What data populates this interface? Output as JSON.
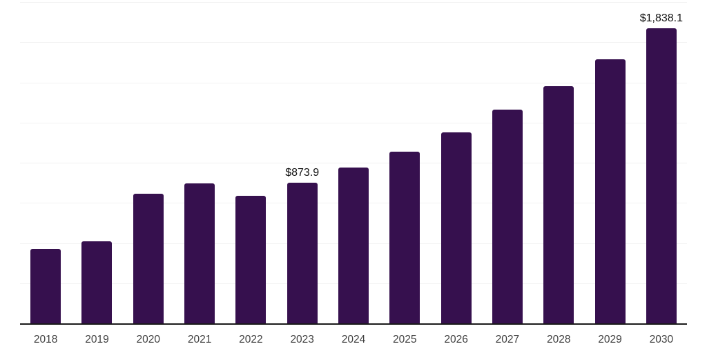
{
  "chart_data": {
    "type": "bar",
    "title": "",
    "xlabel": "",
    "ylabel": "",
    "categories": [
      "2018",
      "2019",
      "2020",
      "2021",
      "2022",
      "2023",
      "2024",
      "2025",
      "2026",
      "2027",
      "2028",
      "2029",
      "2030"
    ],
    "values": [
      465,
      510,
      805,
      870,
      795,
      873.9,
      970,
      1070,
      1190,
      1330,
      1475,
      1645,
      1838.1
    ],
    "value_labels": [
      null,
      null,
      null,
      null,
      null,
      "$873.9",
      null,
      null,
      null,
      null,
      null,
      null,
      "$1,838.1"
    ],
    "ylim": [
      0,
      2000
    ],
    "grid_interval": 250,
    "grid": true,
    "legend": false,
    "colors": {
      "bar": "#36104E",
      "axis_line": "#1a1a1a",
      "gridline": "#f2f2f2",
      "tick_label": "#404040",
      "value_label": "#111111",
      "background": "#ffffff"
    }
  }
}
